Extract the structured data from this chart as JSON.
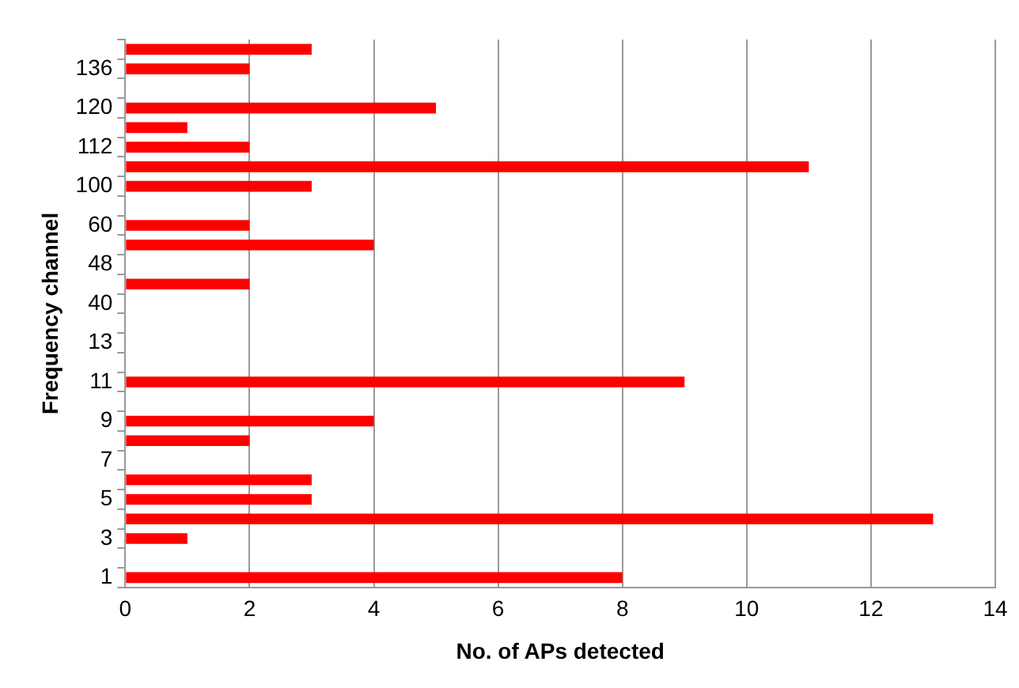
{
  "chart_data": {
    "type": "bar",
    "orientation": "horizontal",
    "xlabel": "No. of APs detected",
    "ylabel": "Frequency channel",
    "categories": [
      null,
      "136",
      null,
      "120",
      null,
      "112",
      null,
      "100",
      null,
      "60",
      null,
      "48",
      null,
      "40",
      null,
      "13",
      null,
      "11",
      null,
      "9",
      null,
      "7",
      null,
      "5",
      null,
      "3",
      null,
      "1"
    ],
    "values": [
      3,
      2,
      null,
      5,
      1,
      2,
      11,
      3,
      null,
      2,
      4,
      null,
      2,
      null,
      null,
      null,
      null,
      9,
      null,
      4,
      2,
      null,
      3,
      3,
      13,
      1,
      null,
      8
    ],
    "color": "#ff0000",
    "xlim": [
      0,
      14
    ],
    "xticks": [
      0,
      2,
      4,
      6,
      8,
      10,
      12,
      14
    ],
    "grid": "x",
    "legend": false
  }
}
